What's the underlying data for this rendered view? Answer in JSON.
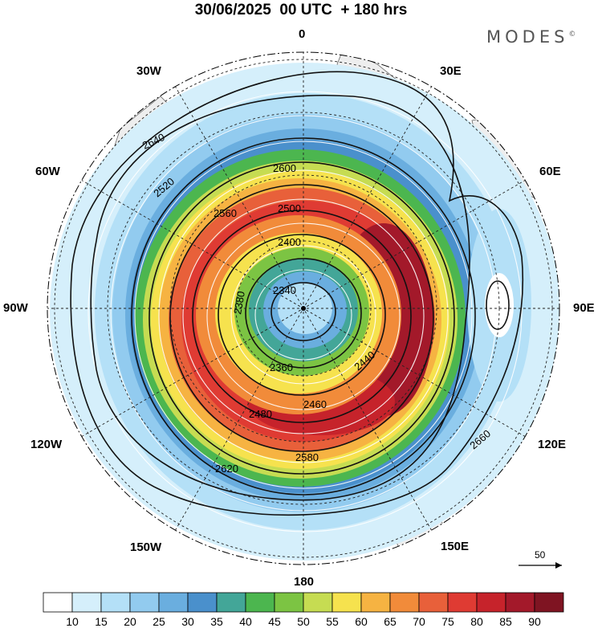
{
  "title": "30/06/2025  00 UTC  + 180 hrs",
  "brand": {
    "name": "MODES",
    "mark": "©"
  },
  "longitude_labels": {
    "lon_0": "0",
    "lon_30e": "30E",
    "lon_60e": "60E",
    "lon_90e": "90E",
    "lon_120e": "120E",
    "lon_150e": "150E",
    "lon_180": "180",
    "lon_150w": "150W",
    "lon_120w": "120W",
    "lon_90w": "90W",
    "lon_60w": "60W",
    "lon_30w": "30W"
  },
  "contour_labels": [
    "2340",
    "2380",
    "2360",
    "2400",
    "2440",
    "2460",
    "2480",
    "2500",
    "2520",
    "2560",
    "2580",
    "2600",
    "2620",
    "2640",
    "2660"
  ],
  "reference_vector": {
    "label": "50"
  },
  "colorbar": {
    "ticks": [
      "10",
      "15",
      "20",
      "25",
      "30",
      "35",
      "40",
      "45",
      "50",
      "55",
      "60",
      "65",
      "70",
      "75",
      "80",
      "85",
      "90"
    ],
    "colors": [
      "#ffffff",
      "#d5effb",
      "#b4e0f7",
      "#92cbef",
      "#6aaedf",
      "#4a90cc",
      "#43a698",
      "#4cb64f",
      "#7cc443",
      "#c6dc52",
      "#f6e24e",
      "#f6b342",
      "#f18b3a",
      "#e8603a",
      "#df3b33",
      "#c6232b",
      "#a3192a",
      "#7f1422"
    ]
  },
  "colors": {
    "land": "#eeeeee",
    "contour": "#111111",
    "streamline": "#ffffff"
  }
}
